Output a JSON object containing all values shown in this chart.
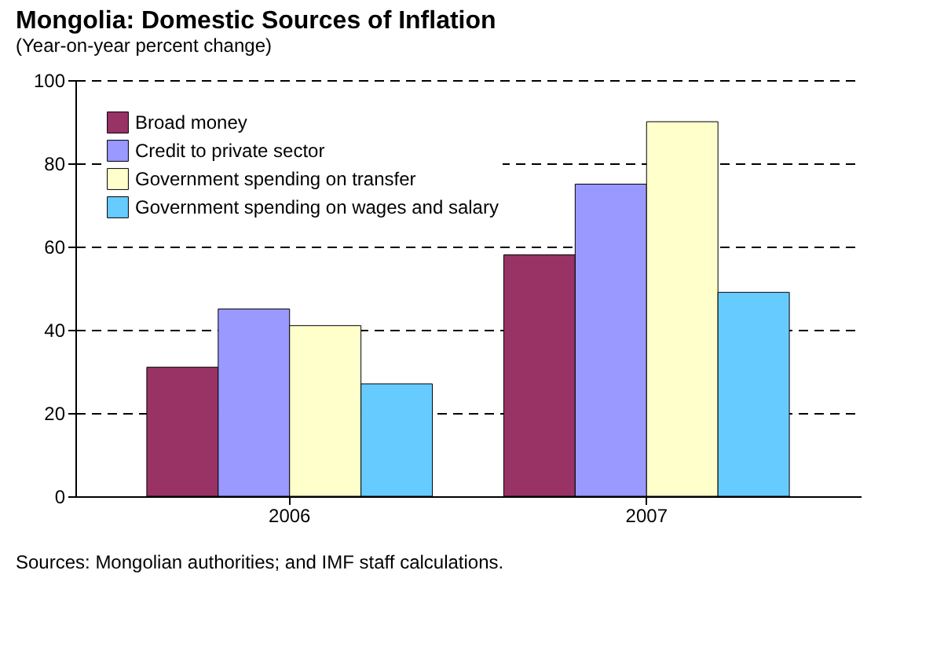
{
  "chart_data": {
    "type": "bar",
    "title": "Mongolia: Domestic Sources of Inflation",
    "subtitle": "(Year-on-year percent change)",
    "categories": [
      "2006",
      "2007"
    ],
    "series": [
      {
        "name": "Broad money",
        "color": "#993366",
        "values": [
          31,
          58
        ]
      },
      {
        "name": "Credit to private sector",
        "color": "#9999ff",
        "values": [
          45,
          75
        ]
      },
      {
        "name": "Government spending on transfer",
        "color": "#ffffcc",
        "values": [
          41,
          90
        ]
      },
      {
        "name": "Government spending on wages and salary",
        "color": "#66ccff",
        "values": [
          27,
          49
        ]
      }
    ],
    "ylim": [
      0,
      100
    ],
    "yticks": [
      0,
      20,
      40,
      60,
      80,
      100
    ],
    "grid": "y",
    "legend": "top left",
    "annotations": [
      "Sources: Mongolian authorities; and IMF staff calculations."
    ]
  }
}
